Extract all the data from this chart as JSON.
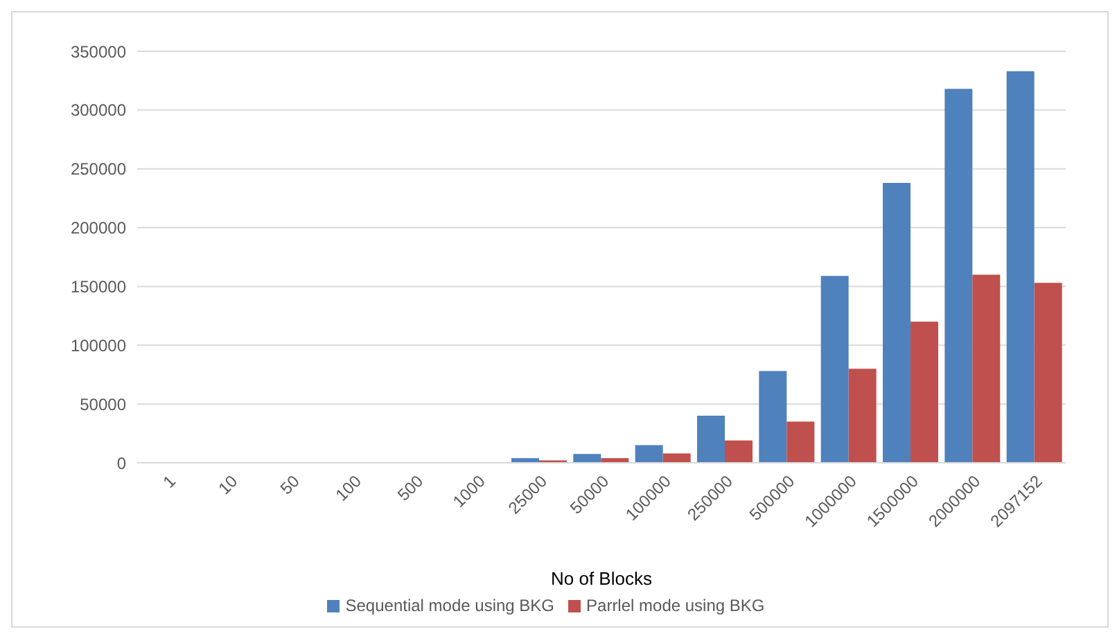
{
  "chart_data": {
    "type": "bar",
    "xlabel": "No of Blocks",
    "categories": [
      "1",
      "10",
      "50",
      "100",
      "500",
      "1000",
      "25000",
      "50000",
      "100000",
      "250000",
      "500000",
      "1000000",
      "1500000",
      "2000000",
      "2097152"
    ],
    "series": [
      {
        "name": "Sequential mode using BKG",
        "color": "#4f81bd",
        "values": [
          0,
          0,
          0,
          0,
          0,
          0,
          4000,
          7500,
          15000,
          40000,
          78000,
          159000,
          238000,
          318000,
          333000
        ]
      },
      {
        "name": "Parrlel  mode using BKG",
        "color": "#c0504d",
        "values": [
          0,
          0,
          0,
          0,
          0,
          0,
          2000,
          4000,
          8000,
          19000,
          35000,
          80000,
          120000,
          160000,
          153000
        ]
      }
    ],
    "ylim": [
      0,
      350000
    ],
    "yticks": [
      0,
      50000,
      100000,
      150000,
      200000,
      250000,
      300000,
      350000
    ],
    "grid": "y",
    "legend": "bottom"
  }
}
